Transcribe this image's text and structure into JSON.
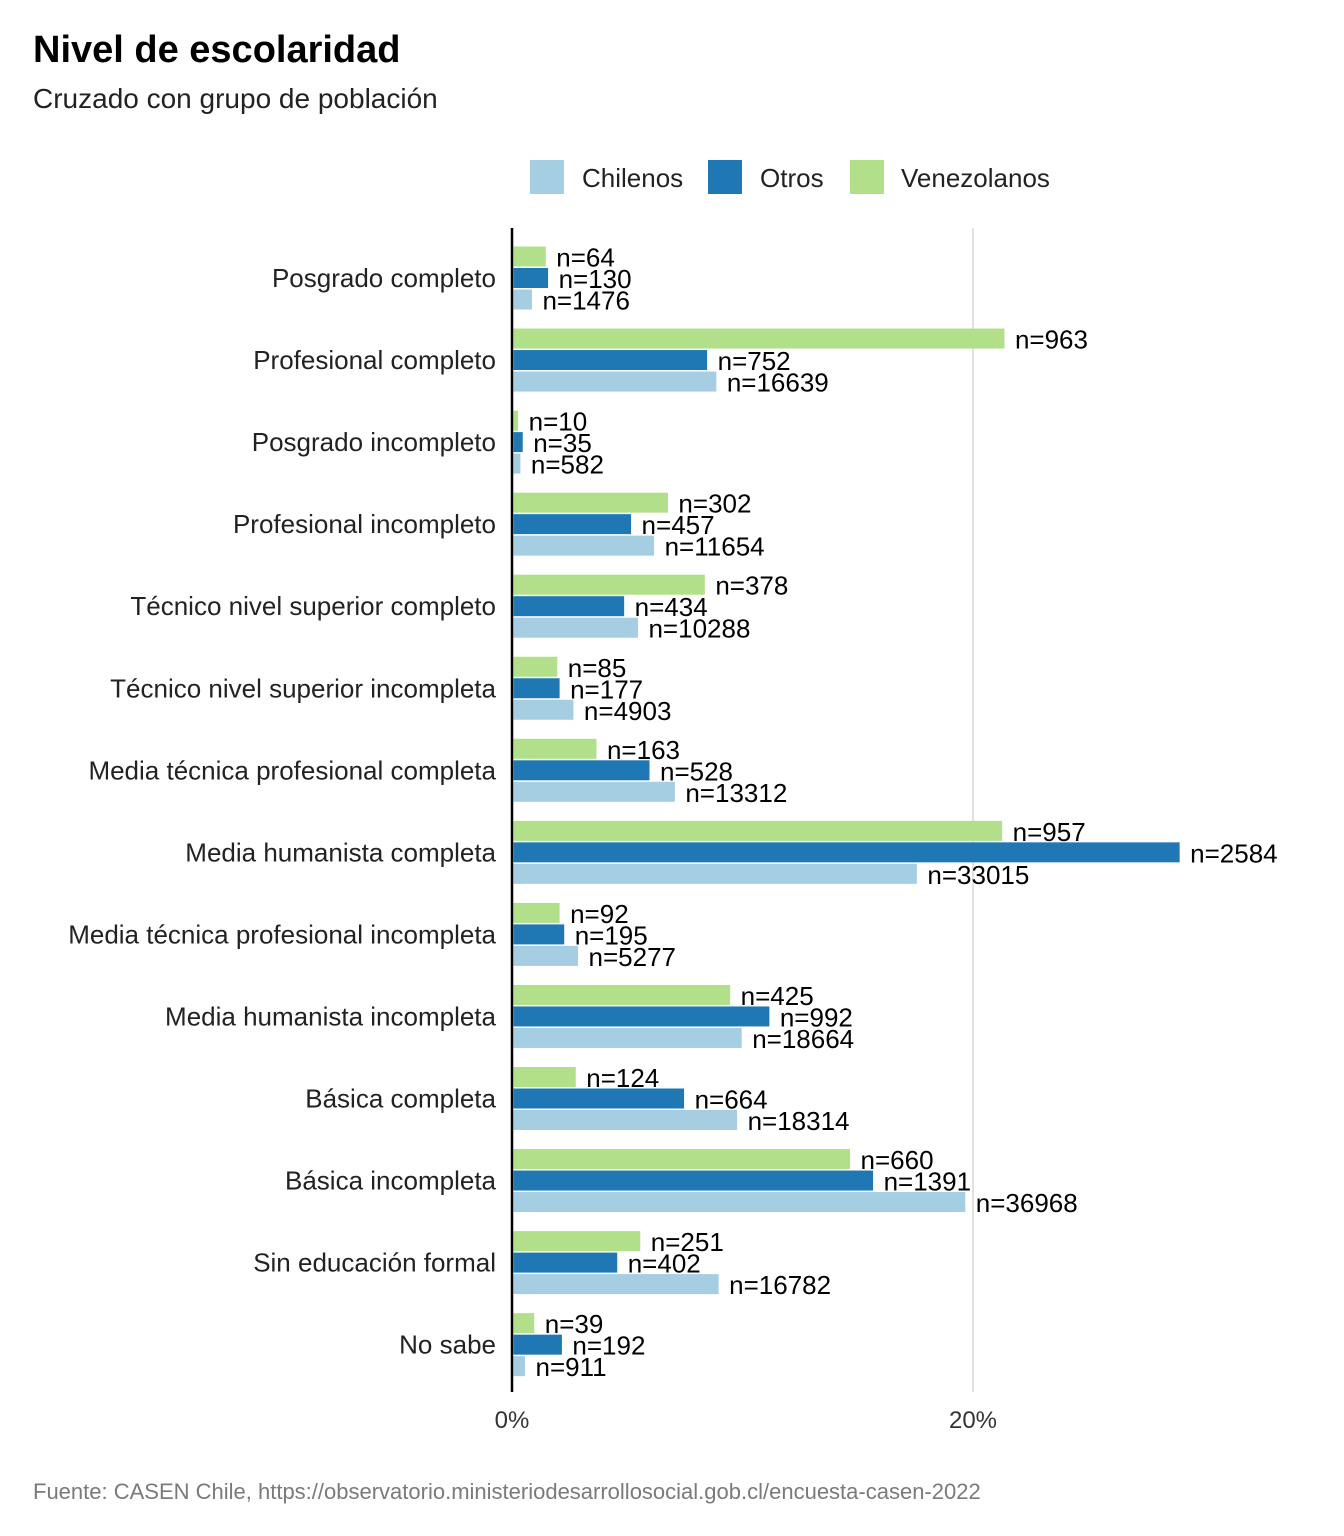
{
  "colors": {
    "Chilenos": "#a6cee3",
    "Otros": "#1f78b4",
    "Venezolanos": "#b2df8a",
    "grid": "#d9d9d9",
    "axis": "#000000"
  },
  "chart_data": {
    "type": "bar",
    "orientation": "horizontal",
    "title": "Nivel de escolaridad",
    "subtitle": "Cruzado con grupo de población",
    "caption": "Fuente: CASEN Chile, https://observatorio.ministeriodesarrollosocial.gob.cl/encuesta-casen-2022",
    "legend": {
      "position": "top",
      "entries": [
        "Chilenos",
        "Otros",
        "Venezolanos"
      ]
    },
    "x_axis": {
      "unit": "percent",
      "range": [
        0,
        36
      ],
      "ticks": [
        0,
        20
      ],
      "tick_labels": [
        "0%",
        "20%"
      ],
      "grid": true
    },
    "categories": [
      "Posgrado completo",
      "Profesional completo",
      "Posgrado incompleto",
      "Profesional incompleto",
      "Técnico nivel superior completo",
      "Técnico nivel superior incompleta",
      "Media técnica profesional completa",
      "Media humanista completa",
      "Media técnica profesional incompleta",
      "Media humanista incompleta",
      "Básica completa",
      "Básica incompleta",
      "Sin educación formal",
      "No sabe"
    ],
    "series": [
      {
        "name": "Venezolanos",
        "values": [
          1.4,
          21.3,
          0.2,
          6.7,
          8.3,
          1.9,
          3.6,
          21.2,
          2.0,
          9.4,
          2.7,
          14.6,
          5.5,
          0.9
        ],
        "labels": [
          "n=64",
          "n=963",
          "n=10",
          "n=302",
          "n=378",
          "n=85",
          "n=163",
          "n=957",
          "n=92",
          "n=425",
          "n=124",
          "n=660",
          "n=251",
          "n=39"
        ]
      },
      {
        "name": "Otros",
        "values": [
          1.5,
          8.4,
          0.4,
          5.1,
          4.8,
          2.0,
          5.9,
          28.9,
          2.2,
          11.1,
          7.4,
          15.6,
          4.5,
          2.1
        ],
        "labels": [
          "n=130",
          "n=752",
          "n=35",
          "n=457",
          "n=434",
          "n=177",
          "n=528",
          "n=2584",
          "n=195",
          "n=992",
          "n=664",
          "n=1391",
          "n=402",
          "n=192"
        ]
      },
      {
        "name": "Chilenos",
        "values": [
          0.8,
          8.8,
          0.3,
          6.1,
          5.4,
          2.6,
          7.0,
          17.5,
          2.8,
          9.9,
          9.7,
          19.6,
          8.9,
          0.5
        ],
        "labels": [
          "n=1476",
          "n=16639",
          "n=582",
          "n=11654",
          "n=10288",
          "n=4903",
          "n=13312",
          "n=33015",
          "n=5277",
          "n=18664",
          "n=18314",
          "n=36968",
          "n=16782",
          "n=911"
        ]
      }
    ]
  }
}
